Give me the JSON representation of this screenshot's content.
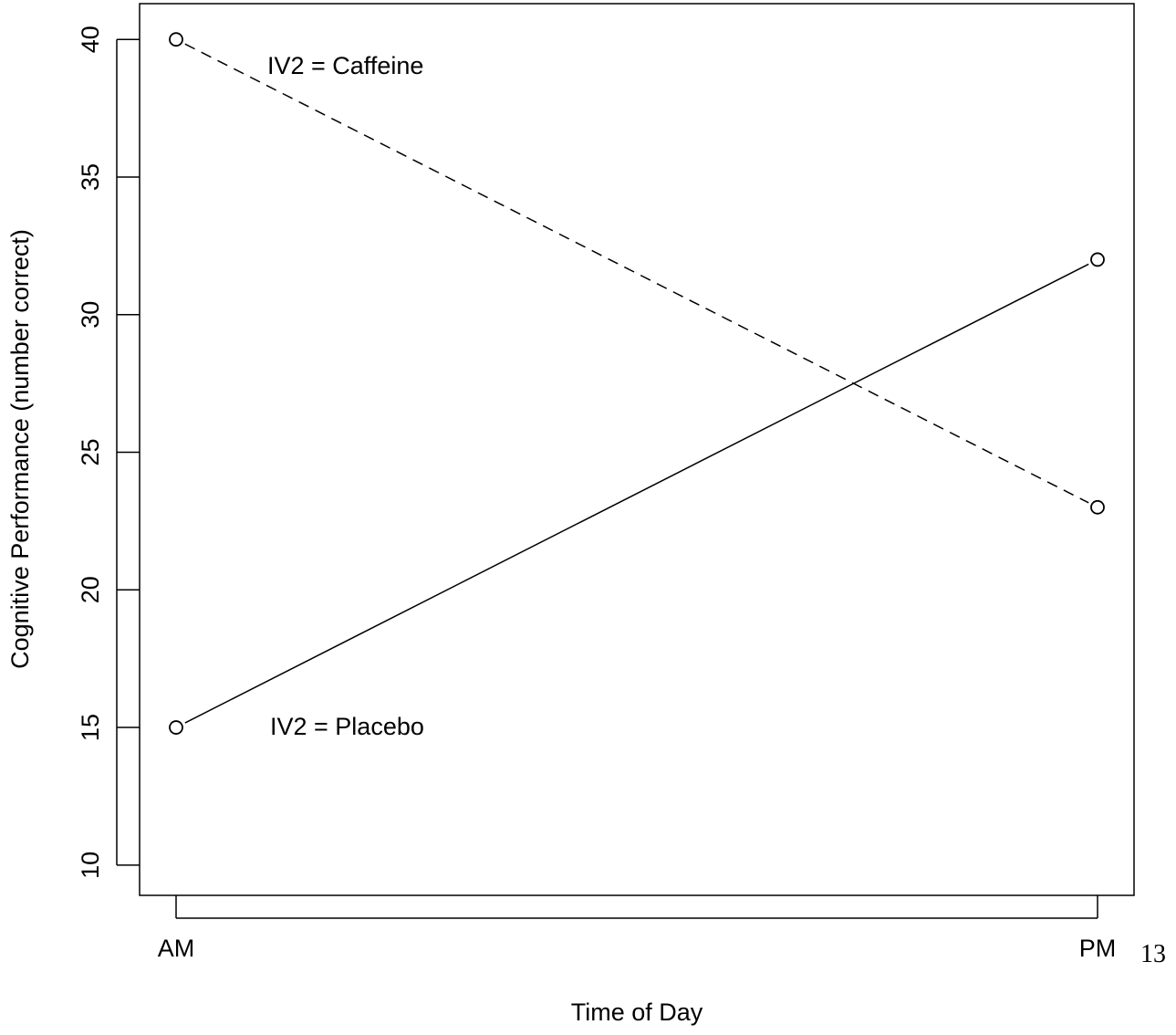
{
  "chart_data": {
    "type": "line",
    "title": "",
    "xlabel": "Time of Day",
    "ylabel": "Cognitive Performance (number correct)",
    "categories": [
      "AM",
      "PM"
    ],
    "ylim": [
      8.9,
      41.3
    ],
    "yticks": [
      10,
      15,
      20,
      25,
      30,
      35,
      40
    ],
    "series": [
      {
        "name": "IV2 = Caffeine",
        "values": [
          40,
          23
        ],
        "line_style": "dashed",
        "marker": "open-circle",
        "color": "#000000"
      },
      {
        "name": "IV2 = Placebo",
        "values": [
          15,
          32
        ],
        "line_style": "solid",
        "marker": "open-circle",
        "color": "#000000"
      }
    ],
    "annotations": [
      "IV2 = Caffeine",
      "IV2 = Placebo"
    ],
    "grid": false,
    "legend": "none"
  },
  "page_number": "13"
}
